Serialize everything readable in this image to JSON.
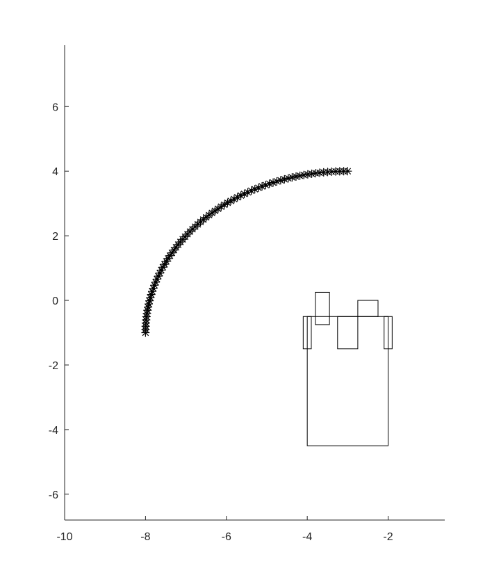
{
  "chart_data": {
    "type": "scatter",
    "title": "",
    "xlabel": "",
    "ylabel": "",
    "xlim": [
      -10,
      -0.6
    ],
    "ylim": [
      -6.8,
      7.9
    ],
    "grid": false,
    "box": false,
    "x_ticks": [
      -10,
      -8,
      -6,
      -4,
      -2
    ],
    "y_ticks": [
      -6,
      -4,
      -2,
      0,
      2,
      4,
      6
    ],
    "x_tick_labels": [
      "-10",
      "-8",
      "-6",
      "-4",
      "-2"
    ],
    "y_tick_labels": [
      "-6",
      "-4",
      "-2",
      "0",
      "2",
      "4",
      "6"
    ],
    "marker": "asterisk",
    "marker_color": "#000000",
    "series": [
      {
        "arc": {
          "center": [
            -3,
            -1
          ],
          "radius": 5,
          "start_angle_deg": 90,
          "end_angle_deg": 180,
          "count": 80
        }
      }
    ],
    "rectangles": [
      {
        "x0": -4,
        "y0": -4.5,
        "x1": -2,
        "y1": -0.5
      },
      {
        "x0": -4.1,
        "y0": -1.5,
        "x1": -3.9,
        "y1": -0.5
      },
      {
        "x0": -2.1,
        "y0": -1.5,
        "x1": -1.9,
        "y1": -0.5
      },
      {
        "x0": -3.8,
        "y0": -0.75,
        "x1": -3.45,
        "y1": 0.25
      },
      {
        "x0": -3.25,
        "y0": -1.5,
        "x1": -2.75,
        "y1": -0.5
      },
      {
        "x0": -2.75,
        "y0": -0.5,
        "x1": -2.25,
        "y1": 0
      }
    ],
    "line_color": "#000000",
    "axis_color": "#262626"
  }
}
